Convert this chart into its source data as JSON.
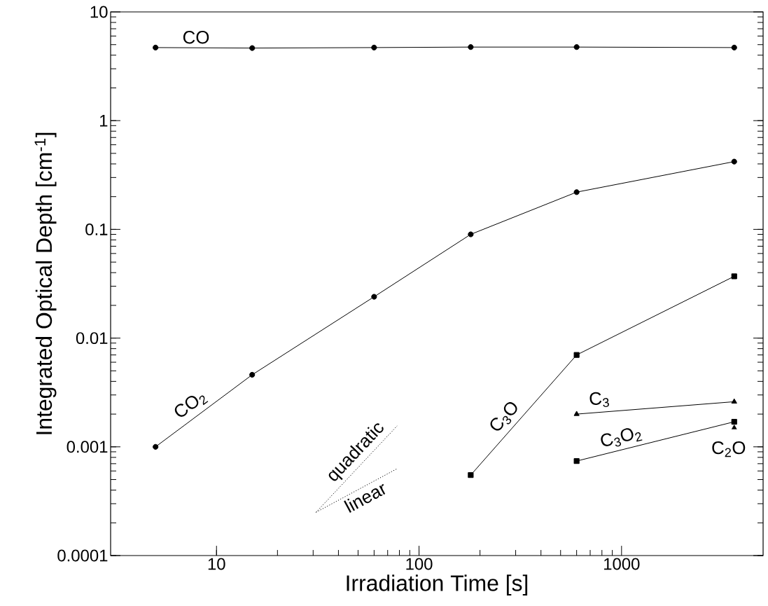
{
  "chart_data": {
    "type": "line",
    "xlabel": "Irradiation Time [s]",
    "ylabel": "Integrated Optical Depth [cm$^{-1}$]",
    "log": "xy",
    "grid": false,
    "xlim": [
      3,
      5000
    ],
    "ylim": [
      0.0001,
      10
    ],
    "xticks": [
      10,
      100,
      1000
    ],
    "yticks": [
      0.0001,
      0.001,
      0.01,
      0.1,
      1,
      10
    ],
    "series": [
      {
        "name": "CO",
        "color": "#000000",
        "marker": "circle",
        "x": [
          5,
          15,
          60,
          180,
          600,
          3600
        ],
        "values": [
          4.7,
          4.65,
          4.7,
          4.75,
          4.75,
          4.7
        ]
      },
      {
        "name": "CO$_{2}$",
        "color": "#000000",
        "marker": "circle",
        "x": [
          5,
          15,
          60,
          180,
          600,
          3600
        ],
        "values": [
          0.001,
          0.0046,
          0.024,
          0.09,
          0.22,
          0.42
        ]
      },
      {
        "name": "C$_{3}$O",
        "color": "#000000",
        "marker": "square",
        "x": [
          180,
          600,
          3600
        ],
        "values": [
          0.00055,
          0.007,
          0.037
        ]
      },
      {
        "name": "C$_{3}$",
        "color": "#000000",
        "marker": "triangle",
        "x": [
          600,
          3600
        ],
        "values": [
          0.002,
          0.0026
        ]
      },
      {
        "name": "C$_{3}$O$_{2}$",
        "color": "#000000",
        "marker": "square",
        "x": [
          600,
          3600
        ],
        "values": [
          0.00074,
          0.0017
        ]
      },
      {
        "name": "C$_{2}$O",
        "type": "scatter",
        "color": "#000000",
        "marker": "triangle",
        "x": [
          3600
        ],
        "values": [
          0.0015
        ]
      },
      {
        "name": "quadratic",
        "color": "#000000",
        "marker": "none",
        "line_style": "dotted",
        "x": [
          31,
          78
        ],
        "values": [
          0.00025,
          0.00156
        ]
      },
      {
        "name": "linear",
        "color": "#000000",
        "marker": "none",
        "line_style": "dotted",
        "x": [
          31,
          78
        ],
        "values": [
          0.00025,
          0.00063
        ]
      }
    ]
  }
}
